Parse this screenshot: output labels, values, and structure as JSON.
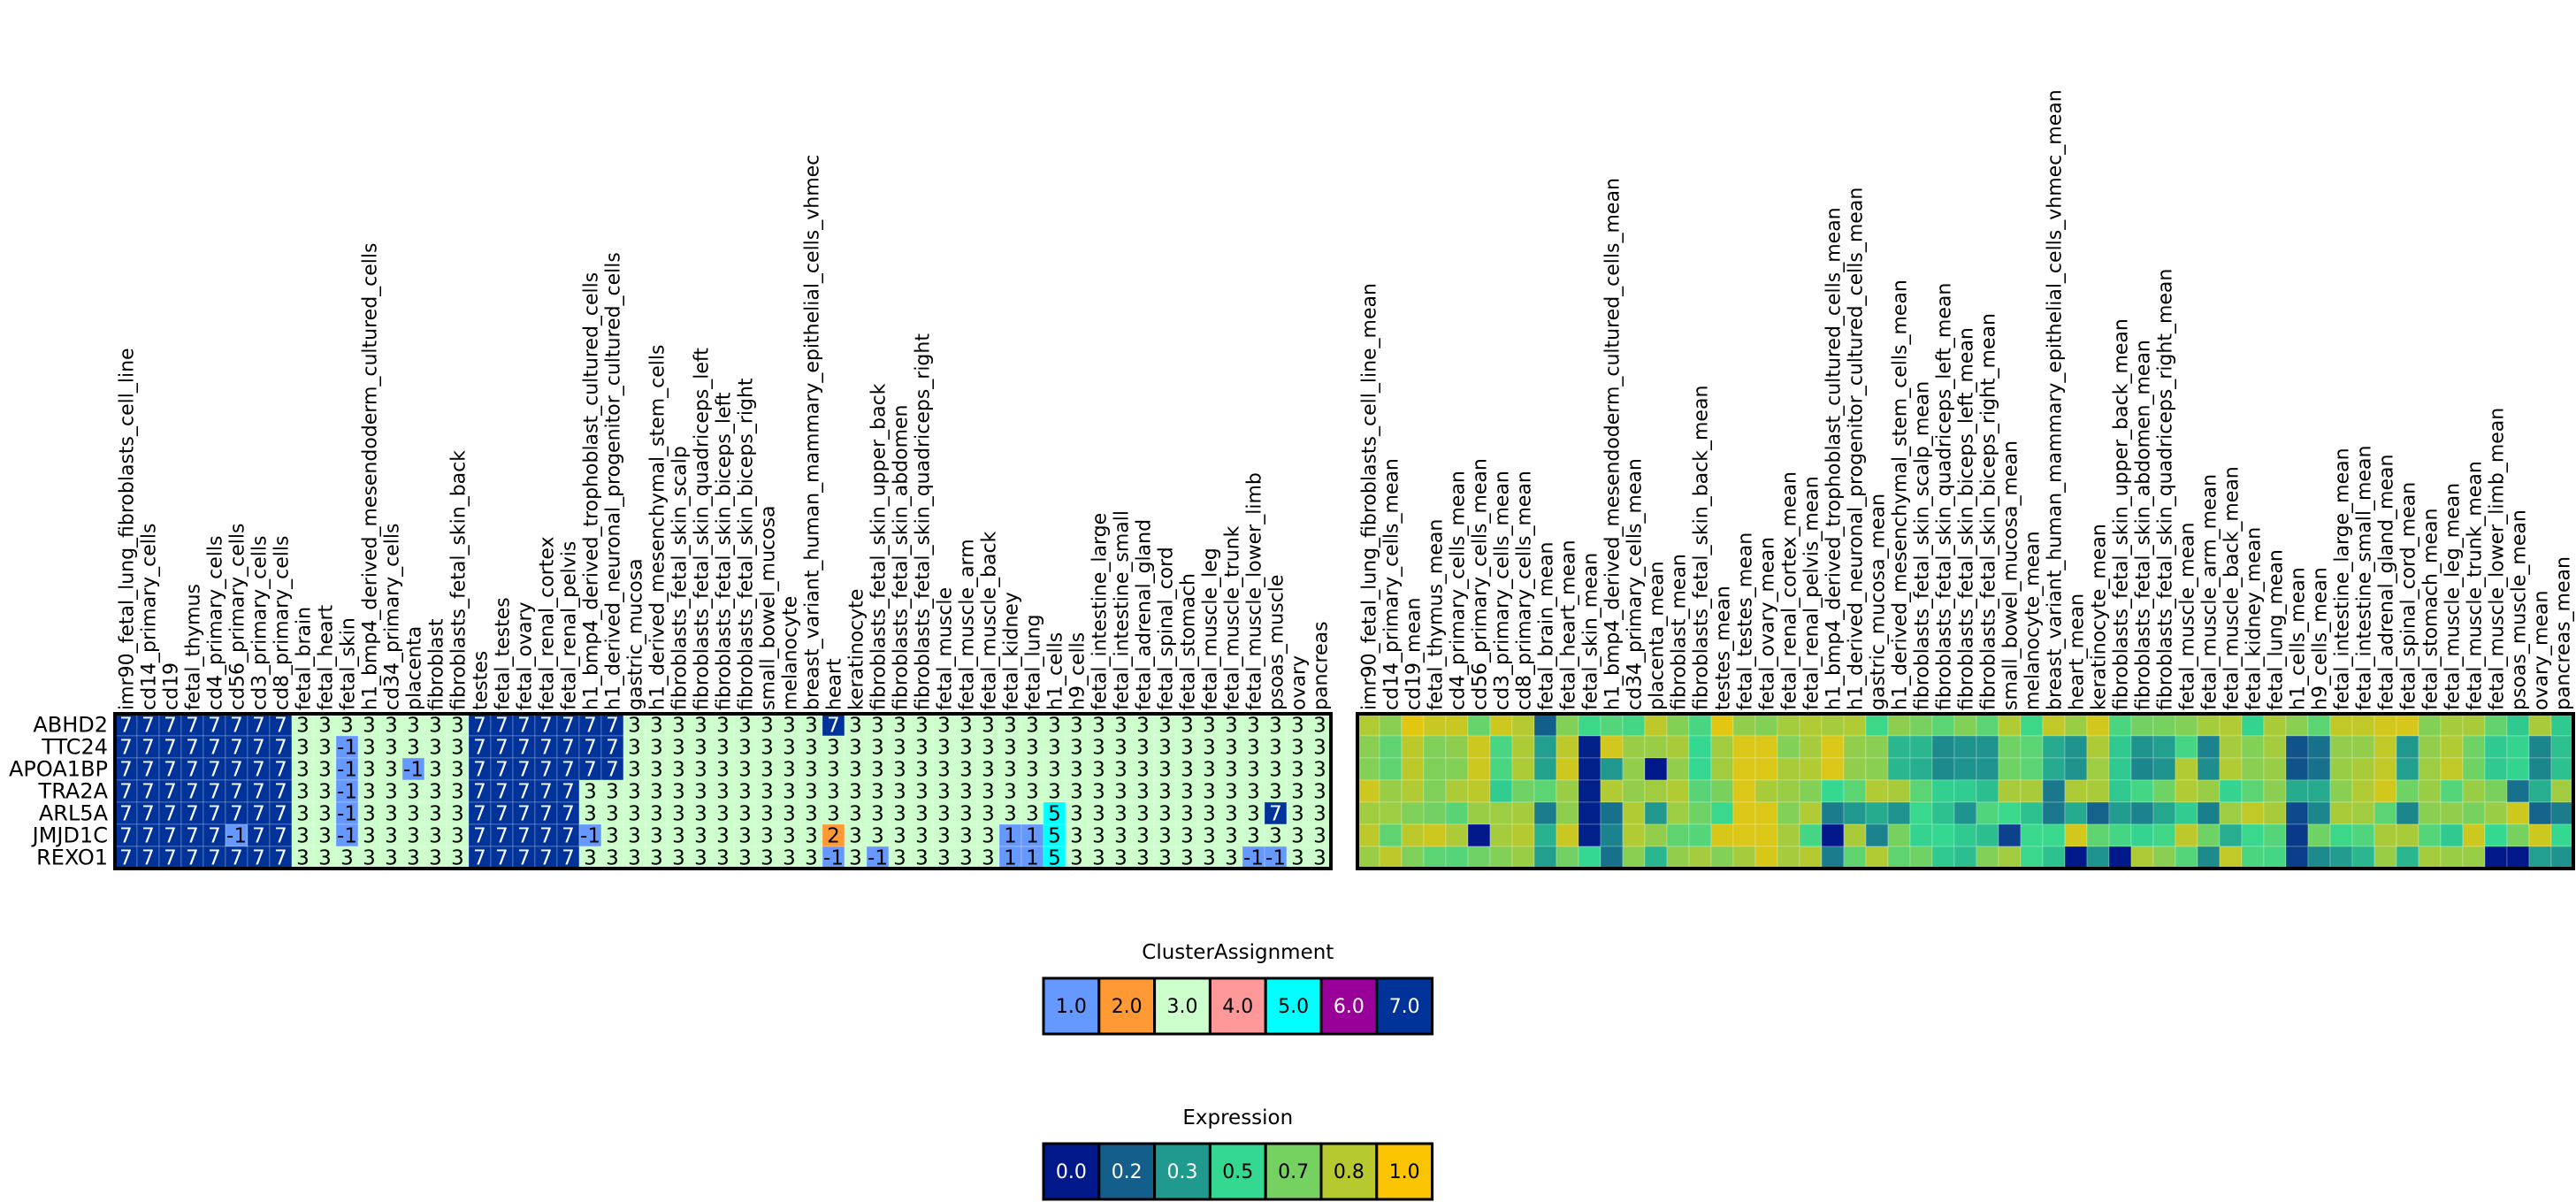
{
  "chart_data": [
    {
      "type": "heatmap",
      "title": "",
      "name": "cluster-assignment-heatmap",
      "rows": [
        "ABHD2",
        "TTC24",
        "APOA1BP",
        "TRA2A",
        "ARL5A",
        "JMJD1C",
        "REXO1"
      ],
      "columns": [
        "imr90_fetal_lung_fibroblasts_cell_line",
        "cd14_primary_cells",
        "cd19",
        "fetal_thymus",
        "cd4_primary_cells",
        "cd56_primary_cells",
        "cd3_primary_cells",
        "cd8_primary_cells",
        "fetal_brain",
        "fetal_heart",
        "fetal_skin",
        "h1_bmp4_derived_mesendoderm_cultured_cells",
        "cd34_primary_cells",
        "placenta",
        "fibroblast",
        "fibroblasts_fetal_skin_back",
        "testes",
        "fetal_testes",
        "fetal_ovary",
        "fetal_renal_cortex",
        "fetal_renal_pelvis",
        "h1_bmp4_derived_trophoblast_cultured_cells",
        "h1_derived_neuronal_progenitor_cultured_cells",
        "gastric_mucosa",
        "h1_derived_mesenchymal_stem_cells",
        "fibroblasts_fetal_skin_scalp",
        "fibroblasts_fetal_skin_quadriceps_left",
        "fibroblasts_fetal_skin_biceps_left",
        "fibroblasts_fetal_skin_biceps_right",
        "small_bowel_mucosa",
        "melanocyte",
        "breast_variant_human_mammary_epithelial_cells_vhmec",
        "heart",
        "keratinocyte",
        "fibroblasts_fetal_skin_upper_back",
        "fibroblasts_fetal_skin_abdomen",
        "fibroblasts_fetal_skin_quadriceps_right",
        "fetal_muscle",
        "fetal_muscle_arm",
        "fetal_muscle_back",
        "fetal_kidney",
        "fetal_lung",
        "h1_cells",
        "h9_cells",
        "fetal_intestine_large",
        "fetal_intestine_small",
        "fetal_adrenal_gland",
        "fetal_spinal_cord",
        "fetal_stomach",
        "fetal_muscle_leg",
        "fetal_muscle_trunk",
        "fetal_muscle_lower_limb",
        "psoas_muscle",
        "ovary",
        "pancreas"
      ],
      "values": [
        [
          7,
          7,
          7,
          7,
          7,
          7,
          7,
          7,
          3,
          3,
          3,
          3,
          3,
          3,
          3,
          3,
          7,
          7,
          7,
          7,
          7,
          7,
          7,
          3,
          3,
          3,
          3,
          3,
          3,
          3,
          3,
          3,
          7,
          3,
          3,
          3,
          3,
          3,
          3,
          3,
          3,
          3,
          3,
          3,
          3,
          3,
          3,
          3,
          3,
          3,
          3,
          3,
          3,
          3,
          3
        ],
        [
          7,
          7,
          7,
          7,
          7,
          7,
          7,
          7,
          3,
          3,
          -1,
          3,
          3,
          3,
          3,
          3,
          7,
          7,
          7,
          7,
          7,
          7,
          7,
          3,
          3,
          3,
          3,
          3,
          3,
          3,
          3,
          3,
          3,
          3,
          3,
          3,
          3,
          3,
          3,
          3,
          3,
          3,
          3,
          3,
          3,
          3,
          3,
          3,
          3,
          3,
          3,
          3,
          3,
          3,
          3
        ],
        [
          7,
          7,
          7,
          7,
          7,
          7,
          7,
          7,
          3,
          3,
          -1,
          3,
          3,
          -1,
          3,
          3,
          7,
          7,
          7,
          7,
          7,
          7,
          7,
          3,
          3,
          3,
          3,
          3,
          3,
          3,
          3,
          3,
          3,
          3,
          3,
          3,
          3,
          3,
          3,
          3,
          3,
          3,
          3,
          3,
          3,
          3,
          3,
          3,
          3,
          3,
          3,
          3,
          3,
          3,
          3
        ],
        [
          7,
          7,
          7,
          7,
          7,
          7,
          7,
          7,
          3,
          3,
          -1,
          3,
          3,
          3,
          3,
          3,
          7,
          7,
          7,
          7,
          7,
          3,
          3,
          3,
          3,
          3,
          3,
          3,
          3,
          3,
          3,
          3,
          3,
          3,
          3,
          3,
          3,
          3,
          3,
          3,
          3,
          3,
          3,
          3,
          3,
          3,
          3,
          3,
          3,
          3,
          3,
          3,
          3,
          3,
          3
        ],
        [
          7,
          7,
          7,
          7,
          7,
          7,
          7,
          7,
          3,
          3,
          -1,
          3,
          3,
          3,
          3,
          3,
          7,
          7,
          7,
          7,
          7,
          3,
          3,
          3,
          3,
          3,
          3,
          3,
          3,
          3,
          3,
          3,
          3,
          3,
          3,
          3,
          3,
          3,
          3,
          3,
          3,
          3,
          5,
          3,
          3,
          3,
          3,
          3,
          3,
          3,
          3,
          3,
          7,
          3,
          3
        ],
        [
          7,
          7,
          7,
          7,
          7,
          -1,
          7,
          7,
          3,
          3,
          -1,
          3,
          3,
          3,
          3,
          3,
          7,
          7,
          7,
          7,
          7,
          -1,
          3,
          3,
          3,
          3,
          3,
          3,
          3,
          3,
          3,
          3,
          2,
          3,
          3,
          3,
          3,
          3,
          3,
          3,
          1,
          1,
          5,
          3,
          3,
          3,
          3,
          3,
          3,
          3,
          3,
          3,
          3,
          3,
          3
        ],
        [
          7,
          7,
          7,
          7,
          7,
          7,
          7,
          7,
          3,
          3,
          3,
          3,
          3,
          3,
          3,
          3,
          7,
          7,
          7,
          7,
          7,
          3,
          3,
          3,
          3,
          3,
          3,
          3,
          3,
          3,
          3,
          3,
          -1,
          3,
          -1,
          3,
          3,
          3,
          3,
          3,
          1,
          1,
          5,
          3,
          3,
          3,
          3,
          3,
          3,
          3,
          3,
          -1,
          -1,
          3,
          3
        ]
      ],
      "colors": {
        "-1": "#6699ff",
        "1": "#6699ff",
        "2": "#ff9933",
        "3": "#ccffcc",
        "4": "#ff9999",
        "5": "#00ffff",
        "6": "#990099",
        "7": "#003399"
      }
    },
    {
      "type": "heatmap",
      "title": "",
      "name": "expression-mean-heatmap",
      "rows": [
        "ABHD2",
        "TTC24",
        "APOA1BP",
        "TRA2A",
        "ARL5A",
        "JMJD1C",
        "REXO1"
      ],
      "columns": [
        "imr90_fetal_lung_fibroblasts_cell_line_mean",
        "cd14_primary_cells_mean",
        "cd19_mean",
        "fetal_thymus_mean",
        "cd4_primary_cells_mean",
        "cd56_primary_cells_mean",
        "cd3_primary_cells_mean",
        "cd8_primary_cells_mean",
        "fetal_brain_mean",
        "fetal_heart_mean",
        "fetal_skin_mean",
        "h1_bmp4_derived_mesendoderm_cultured_cells_mean",
        "cd34_primary_cells_mean",
        "placenta_mean",
        "fibroblast_mean",
        "fibroblasts_fetal_skin_back_mean",
        "testes_mean",
        "fetal_testes_mean",
        "fetal_ovary_mean",
        "fetal_renal_cortex_mean",
        "fetal_renal_pelvis_mean",
        "h1_bmp4_derived_trophoblast_cultured_cells_mean",
        "h1_derived_neuronal_progenitor_cultured_cells_mean",
        "gastric_mucosa_mean",
        "h1_derived_mesenchymal_stem_cells_mean",
        "fibroblasts_fetal_skin_scalp_mean",
        "fibroblasts_fetal_skin_quadriceps_left_mean",
        "fibroblasts_fetal_skin_biceps_left_mean",
        "fibroblasts_fetal_skin_biceps_right_mean",
        "small_bowel_mucosa_mean",
        "melanocyte_mean",
        "breast_variant_human_mammary_epithelial_cells_vhmec_mean",
        "heart_mean",
        "keratinocyte_mean",
        "fibroblasts_fetal_skin_upper_back_mean",
        "fibroblasts_fetal_skin_abdomen_mean",
        "fibroblasts_fetal_skin_quadriceps_right_mean",
        "fetal_muscle_mean",
        "fetal_muscle_arm_mean",
        "fetal_muscle_back_mean",
        "fetal_kidney_mean",
        "fetal_lung_mean",
        "h1_cells_mean",
        "h9_cells_mean",
        "fetal_intestine_large_mean",
        "fetal_intestine_small_mean",
        "fetal_adrenal_gland_mean",
        "fetal_spinal_cord_mean",
        "fetal_stomach_mean",
        "fetal_muscle_leg_mean",
        "fetal_muscle_trunk_mean",
        "fetal_muscle_lower_limb_mean",
        "psoas_muscle_mean",
        "ovary_mean",
        "pancreas_mean"
      ],
      "values": [
        [
          0.82,
          0.72,
          0.94,
          0.88,
          0.88,
          0.63,
          0.89,
          0.83,
          0.17,
          0.7,
          0.52,
          0.58,
          0.54,
          0.85,
          0.7,
          0.55,
          0.94,
          0.74,
          0.7,
          0.79,
          0.82,
          0.79,
          0.82,
          0.52,
          0.73,
          0.67,
          0.6,
          0.7,
          0.6,
          0.82,
          0.52,
          0.86,
          0.76,
          0.9,
          0.56,
          0.66,
          0.67,
          0.7,
          0.79,
          0.82,
          0.49,
          0.8,
          0.72,
          0.6,
          0.86,
          0.86,
          0.9,
          0.91,
          0.7,
          0.79,
          0.8,
          0.62,
          0.46,
          0.8,
          0.46
        ],
        [
          0.72,
          0.61,
          0.85,
          0.69,
          0.73,
          0.89,
          0.55,
          0.81,
          0.35,
          0.85,
          0.02,
          0.9,
          0.76,
          0.76,
          0.8,
          0.5,
          0.78,
          0.92,
          0.92,
          0.7,
          0.79,
          0.92,
          0.74,
          0.72,
          0.41,
          0.41,
          0.29,
          0.32,
          0.32,
          0.65,
          0.6,
          0.38,
          0.32,
          0.81,
          0.46,
          0.32,
          0.35,
          0.54,
          0.27,
          0.79,
          0.7,
          0.79,
          0.14,
          0.22,
          0.74,
          0.74,
          0.86,
          0.33,
          0.74,
          0.82,
          0.65,
          0.46,
          0.49,
          0.28,
          0.44
        ],
        [
          0.7,
          0.61,
          0.85,
          0.69,
          0.7,
          0.89,
          0.55,
          0.81,
          0.36,
          0.89,
          0.02,
          0.33,
          0.74,
          0.0,
          0.74,
          0.5,
          0.78,
          0.92,
          0.92,
          0.8,
          0.82,
          0.92,
          0.74,
          0.72,
          0.41,
          0.39,
          0.29,
          0.32,
          0.32,
          0.65,
          0.6,
          0.38,
          0.32,
          0.77,
          0.46,
          0.28,
          0.32,
          0.82,
          0.3,
          0.82,
          0.72,
          0.76,
          0.14,
          0.22,
          0.76,
          0.8,
          0.86,
          0.35,
          0.77,
          0.86,
          0.65,
          0.46,
          0.49,
          0.28,
          0.44
        ],
        [
          0.89,
          0.76,
          0.82,
          0.69,
          0.81,
          0.85,
          0.47,
          0.65,
          0.6,
          0.76,
          0.02,
          0.82,
          0.74,
          0.78,
          0.82,
          0.59,
          0.68,
          0.92,
          0.8,
          0.76,
          0.7,
          0.5,
          0.6,
          0.82,
          0.8,
          0.6,
          0.48,
          0.47,
          0.43,
          0.8,
          0.8,
          0.24,
          0.81,
          0.8,
          0.46,
          0.54,
          0.65,
          0.82,
          0.76,
          0.49,
          0.6,
          0.72,
          0.38,
          0.38,
          0.72,
          0.82,
          0.9,
          0.65,
          0.76,
          0.58,
          0.76,
          0.68,
          0.22,
          0.39,
          0.78
        ],
        [
          0.78,
          0.77,
          0.69,
          0.66,
          0.59,
          0.76,
          0.77,
          0.79,
          0.25,
          0.73,
          0.02,
          0.22,
          0.82,
          0.33,
          0.77,
          0.65,
          0.51,
          0.92,
          0.92,
          0.7,
          0.82,
          0.25,
          0.33,
          0.38,
          0.32,
          0.51,
          0.44,
          0.32,
          0.57,
          0.51,
          0.44,
          0.24,
          0.38,
          0.18,
          0.34,
          0.27,
          0.37,
          0.47,
          0.26,
          0.77,
          0.86,
          0.8,
          0.12,
          0.28,
          0.8,
          0.78,
          0.6,
          0.28,
          0.72,
          0.74,
          0.67,
          0.76,
          0.89,
          0.18,
          0.25
        ],
        [
          0.85,
          0.61,
          0.85,
          0.89,
          0.81,
          0.0,
          0.79,
          0.83,
          0.4,
          0.88,
          0.02,
          0.27,
          0.82,
          0.74,
          0.61,
          0.58,
          0.91,
          0.92,
          0.92,
          0.79,
          0.54,
          0.0,
          0.8,
          0.27,
          0.67,
          0.49,
          0.5,
          0.46,
          0.43,
          0.1,
          0.51,
          0.51,
          0.9,
          0.61,
          0.54,
          0.49,
          0.53,
          0.85,
          0.65,
          0.39,
          0.51,
          0.58,
          0.08,
          0.65,
          0.52,
          0.57,
          0.8,
          0.8,
          0.58,
          0.46,
          0.89,
          0.5,
          0.67,
          0.89,
          0.5
        ],
        [
          0.76,
          0.85,
          0.69,
          0.6,
          0.58,
          0.65,
          0.7,
          0.76,
          0.35,
          0.66,
          0.5,
          0.22,
          0.72,
          0.41,
          0.74,
          0.79,
          0.7,
          0.79,
          0.91,
          0.79,
          0.83,
          0.25,
          0.61,
          0.82,
          0.61,
          0.65,
          0.46,
          0.43,
          0.7,
          0.78,
          0.51,
          0.44,
          0.0,
          0.32,
          0.0,
          0.81,
          0.72,
          0.58,
          0.29,
          0.86,
          0.56,
          0.54,
          0.09,
          0.29,
          0.34,
          0.41,
          0.76,
          0.41,
          0.79,
          0.76,
          0.76,
          0.0,
          0.0,
          0.35,
          0.32
        ]
      ],
      "vlim": [
        0,
        1
      ]
    }
  ],
  "legends": {
    "cluster": {
      "title": "ClusterAssignment",
      "items": [
        {
          "label": "1.0",
          "color": "#6699ff",
          "text_color": "#000000"
        },
        {
          "label": "2.0",
          "color": "#ff9933",
          "text_color": "#000000"
        },
        {
          "label": "3.0",
          "color": "#ccffcc",
          "text_color": "#000000"
        },
        {
          "label": "4.0",
          "color": "#ff9999",
          "text_color": "#000000"
        },
        {
          "label": "5.0",
          "color": "#00ffff",
          "text_color": "#000000"
        },
        {
          "label": "6.0",
          "color": "#990099",
          "text_color": "#ffffff"
        },
        {
          "label": "7.0",
          "color": "#003399",
          "text_color": "#ffffff"
        }
      ]
    },
    "expression": {
      "title": "Expression",
      "items": [
        {
          "label": "0.0",
          "color": "#00188a",
          "text_color": "#ffffff"
        },
        {
          "label": "0.2",
          "color": "#135e8b",
          "text_color": "#ffffff"
        },
        {
          "label": "0.3",
          "color": "#20998e",
          "text_color": "#ffffff"
        },
        {
          "label": "0.5",
          "color": "#35d890",
          "text_color": "#000000"
        },
        {
          "label": "0.7",
          "color": "#75d160",
          "text_color": "#000000"
        },
        {
          "label": "0.8",
          "color": "#b6ca30",
          "text_color": "#000000"
        },
        {
          "label": "1.0",
          "color": "#fbc400",
          "text_color": "#000000"
        }
      ]
    }
  }
}
